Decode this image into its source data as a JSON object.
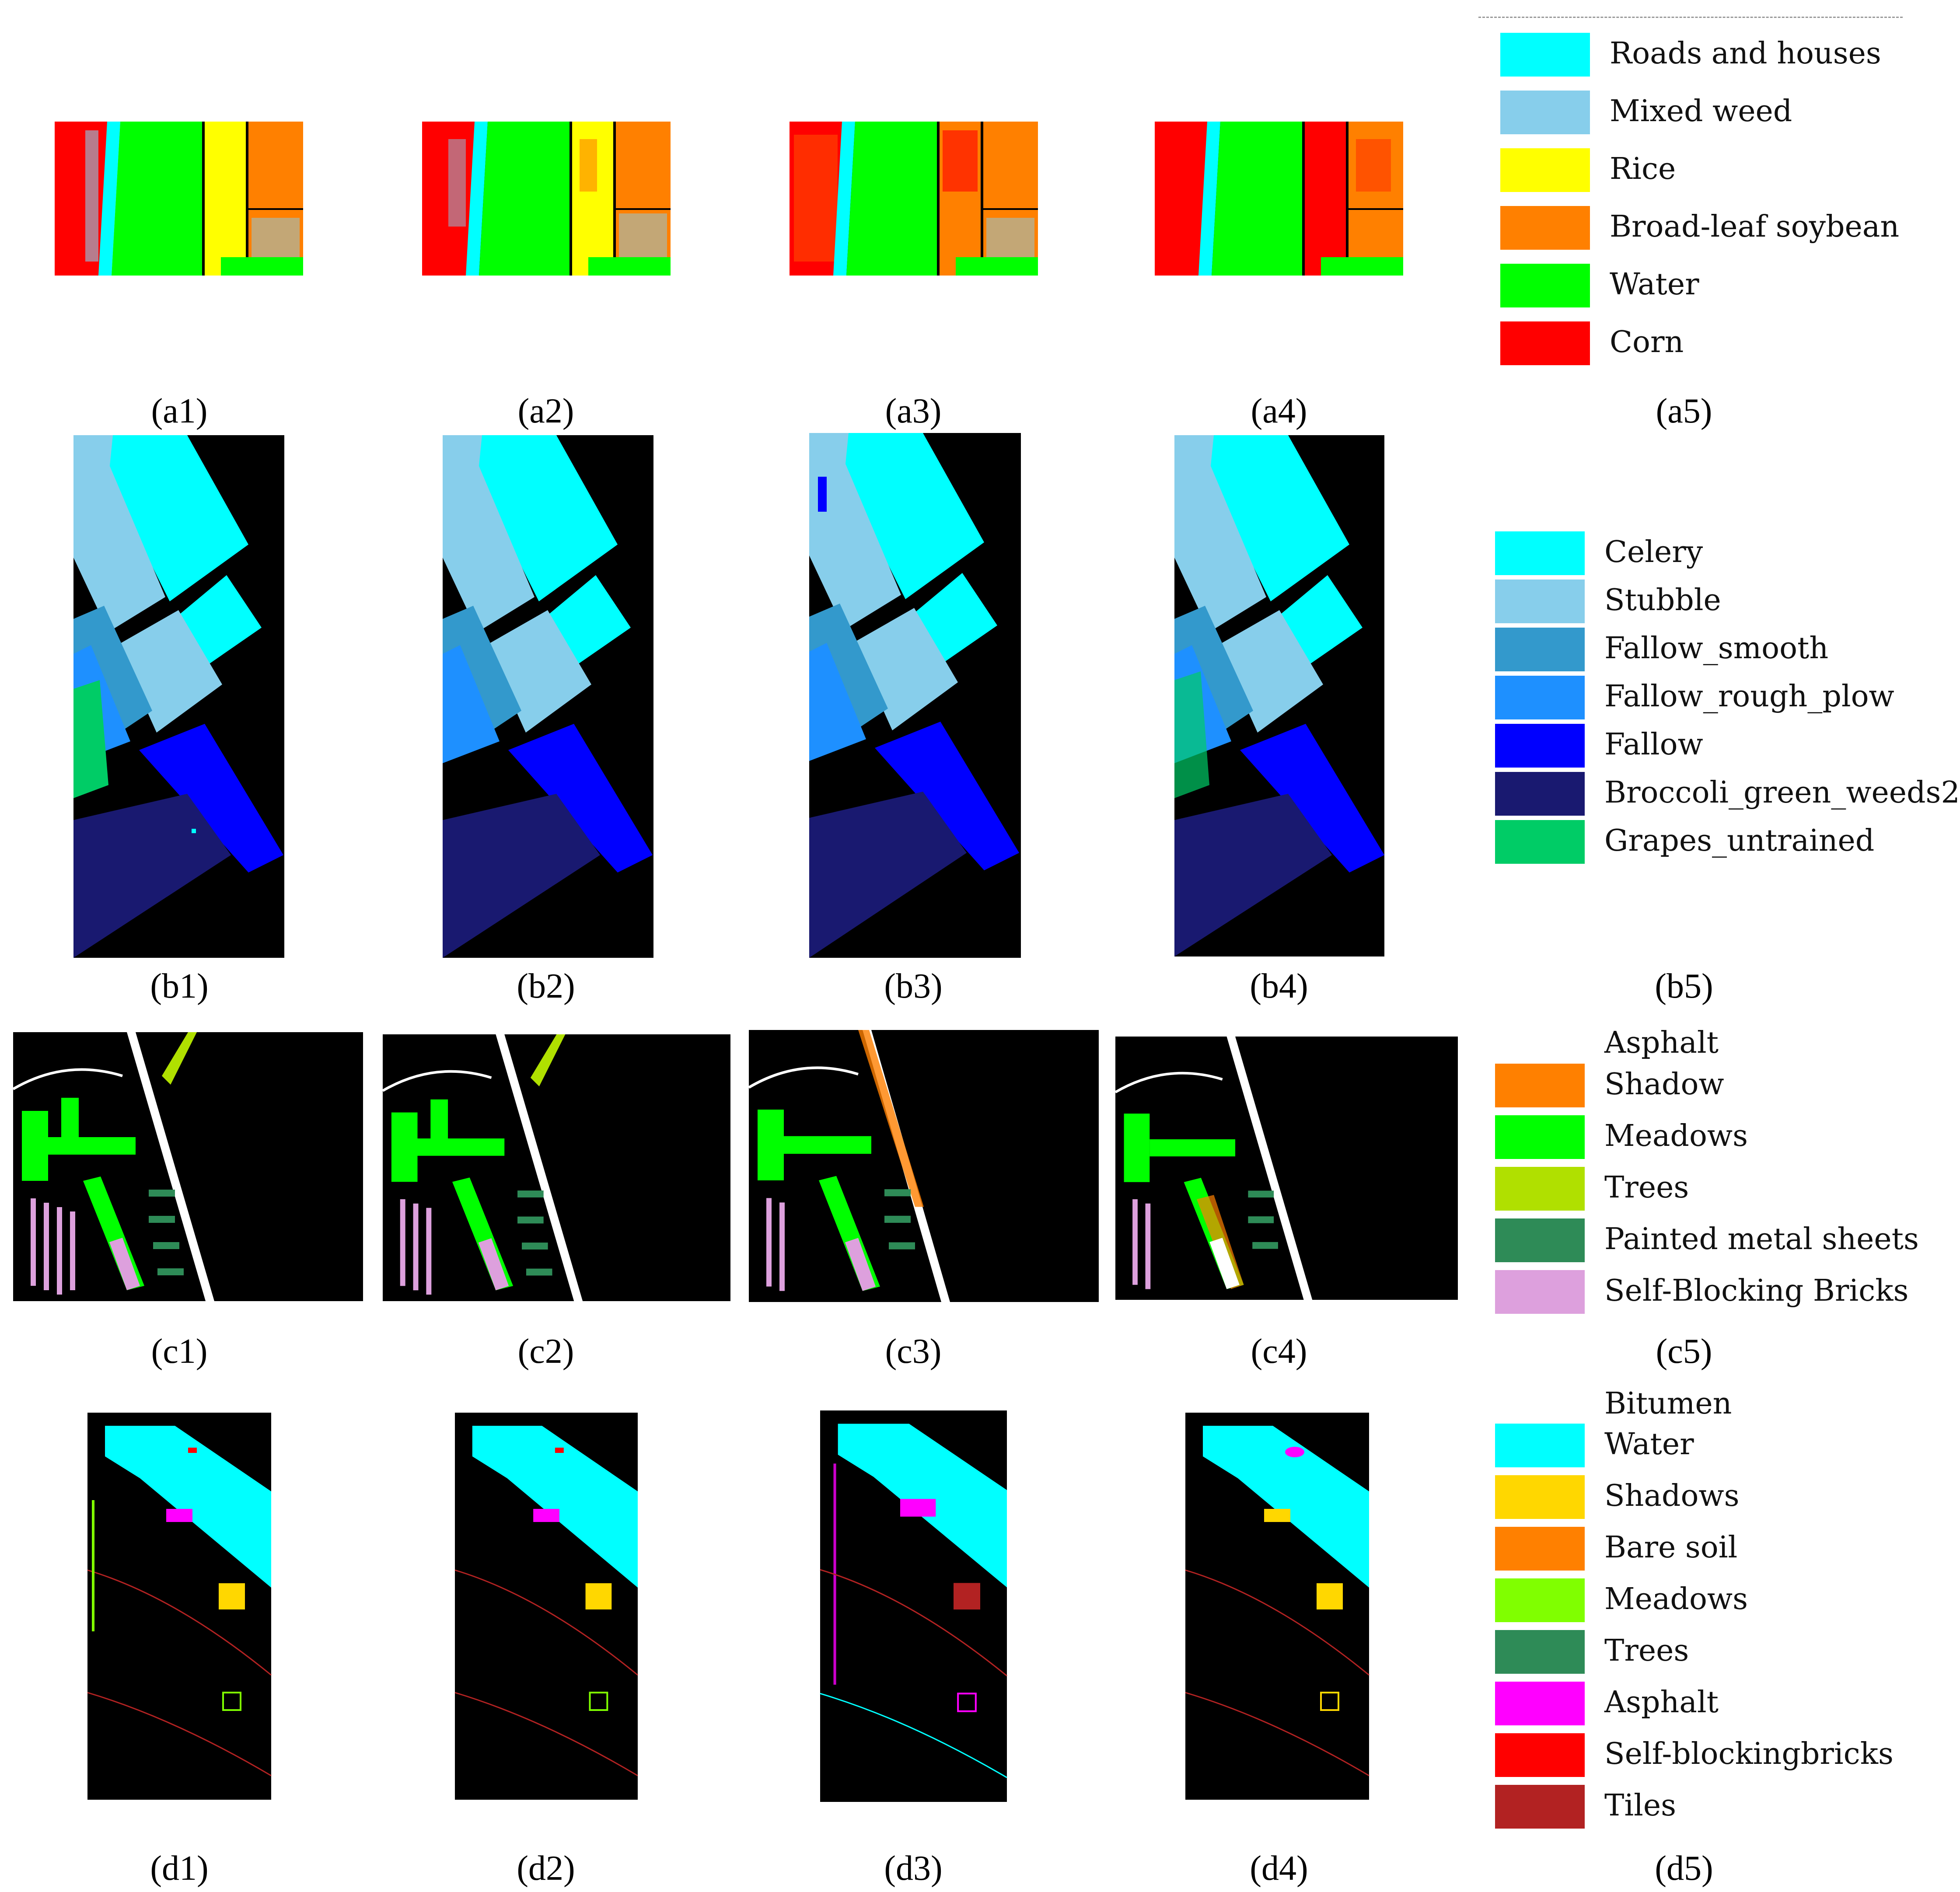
{
  "figure": {
    "rows": [
      {
        "id": "a",
        "panels": [
          "(a1)",
          "(a2)",
          "(a3)",
          "(a4)"
        ],
        "legend_caption": "(a5)",
        "legend_header": "",
        "legend": [
          {
            "label": "Roads and houses",
            "color": "#00ffff"
          },
          {
            "label": "Mixed weed",
            "color": "#87ceeb"
          },
          {
            "label": "Rice",
            "color": "#ffff00"
          },
          {
            "label": "Broad-leaf soybean",
            "color": "#ff8000"
          },
          {
            "label": "Water",
            "color": "#00ff00"
          },
          {
            "label": "Corn",
            "color": "#ff0000"
          }
        ]
      },
      {
        "id": "b",
        "panels": [
          "(b1)",
          "(b2)",
          "(b3)",
          "(b4)"
        ],
        "legend_caption": "(b5)",
        "legend_header": "",
        "legend": [
          {
            "label": "Celery",
            "color": "#00ffff"
          },
          {
            "label": "Stubble",
            "color": "#87ceeb"
          },
          {
            "label": "Fallow_smooth",
            "color": "#3399cc"
          },
          {
            "label": "Fallow_rough_plow",
            "color": "#1e90ff"
          },
          {
            "label": "Fallow",
            "color": "#0000ff"
          },
          {
            "label": "Broccoli_green_weeds2",
            "color": "#191970"
          },
          {
            "label": "Grapes_untrained",
            "color": "#00cc66"
          }
        ]
      },
      {
        "id": "c",
        "panels": [
          "(c1)",
          "(c2)",
          "(c3)",
          "(c4)"
        ],
        "legend_caption": "(c5)",
        "legend_header": "Asphalt",
        "legend": [
          {
            "label": "Shadow",
            "color": "#ff8000"
          },
          {
            "label": "Meadows",
            "color": "#00ff00"
          },
          {
            "label": "Trees",
            "color": "#b0e000"
          },
          {
            "label": "Painted metal sheets",
            "color": "#2e8b57"
          },
          {
            "label": "Self-Blocking Bricks",
            "color": "#dda0dd"
          }
        ]
      },
      {
        "id": "d",
        "panels": [
          "(d1)",
          "(d2)",
          "(d3)",
          "(d4)"
        ],
        "legend_caption": "(d5)",
        "legend_header": "Bitumen",
        "legend": [
          {
            "label": "Water",
            "color": "#00ffff"
          },
          {
            "label": "Shadows",
            "color": "#ffd700"
          },
          {
            "label": "Bare soil",
            "color": "#ff8000"
          },
          {
            "label": "Meadows",
            "color": "#80ff00"
          },
          {
            "label": "Trees",
            "color": "#2e8b57"
          },
          {
            "label": "Asphalt",
            "color": "#ff00ff"
          },
          {
            "label": "Self-blockingbricks",
            "color": "#ff0000"
          },
          {
            "label": "Tiles",
            "color": "#b22222"
          }
        ]
      }
    ]
  }
}
